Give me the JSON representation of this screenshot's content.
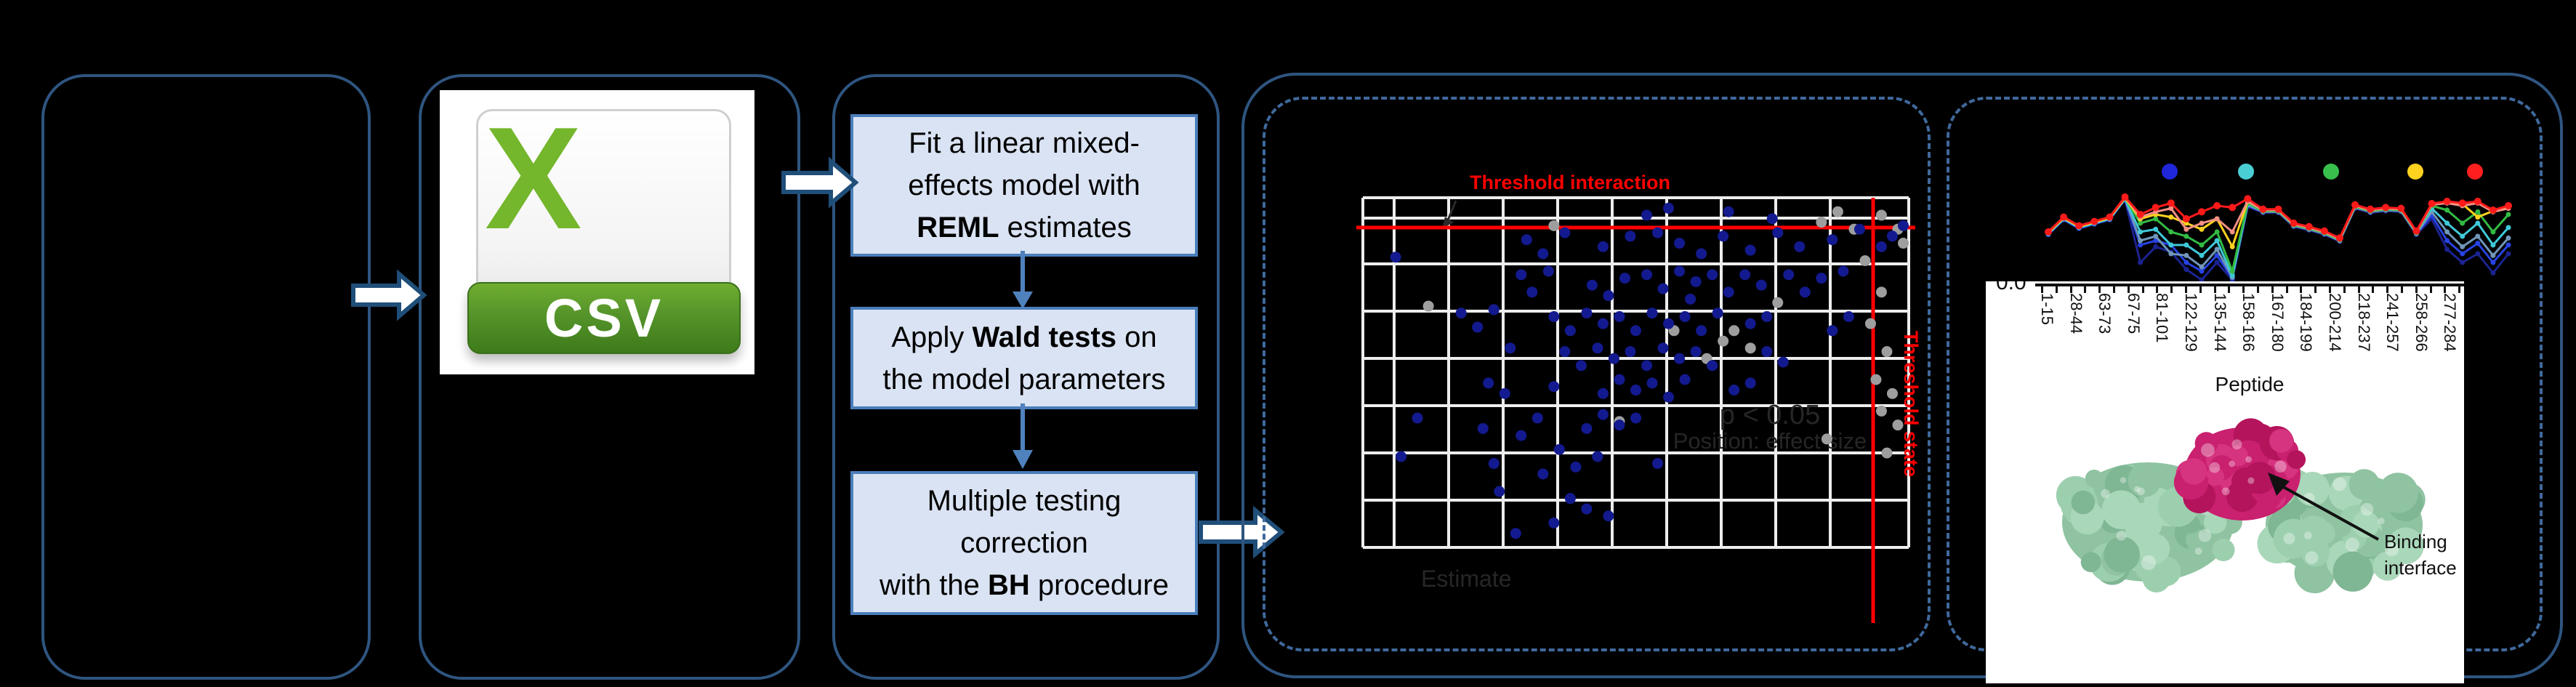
{
  "csv": {
    "letter": "X",
    "label": "CSV"
  },
  "flow": {
    "box1": {
      "lines": [
        [
          {
            "t": "Fit a linear mixed-"
          }
        ],
        [
          {
            "t": "effects model with"
          }
        ],
        [
          {
            "t": "REML",
            "b": 1
          },
          {
            "t": " estimates"
          }
        ]
      ]
    },
    "box2": {
      "lines": [
        [
          {
            "t": "Apply "
          },
          {
            "t": "Wald tests",
            "b": 1
          },
          {
            "t": " on"
          }
        ],
        [
          {
            "t": "the model parameters"
          }
        ]
      ]
    },
    "box3": {
      "lines": [
        [
          {
            "t": "Multiple testing"
          }
        ],
        [
          {
            "t": "correction"
          }
        ],
        [
          {
            "t": "with the "
          },
          {
            "t": "BH",
            "b": 1
          },
          {
            "t": " procedure"
          }
        ]
      ]
    }
  },
  "scatter": {
    "title": "Threshold interaction",
    "threshold_state_label": "Threshold state",
    "faint_line1": "p < 0.05",
    "faint_line2": "Position: effect size",
    "faint_axis": "Estimate",
    "red": "#ff0000",
    "blue_color": "#131a8f",
    "gray_color": "#9e9e9e",
    "blue_points": [
      [
        0.52,
        0.05
      ],
      [
        0.56,
        0.03
      ],
      [
        0.67,
        0.04
      ],
      [
        0.75,
        0.06
      ],
      [
        0.06,
        0.17
      ],
      [
        0.3,
        0.12
      ],
      [
        0.33,
        0.16
      ],
      [
        0.37,
        0.1
      ],
      [
        0.44,
        0.14
      ],
      [
        0.49,
        0.11
      ],
      [
        0.54,
        0.1
      ],
      [
        0.58,
        0.13
      ],
      [
        0.62,
        0.16
      ],
      [
        0.66,
        0.11
      ],
      [
        0.71,
        0.15
      ],
      [
        0.76,
        0.1
      ],
      [
        0.8,
        0.14
      ],
      [
        0.86,
        0.12
      ],
      [
        0.91,
        0.09
      ],
      [
        0.95,
        0.14
      ],
      [
        0.97,
        0.11
      ],
      [
        0.99,
        0.08
      ],
      [
        0.29,
        0.22
      ],
      [
        0.31,
        0.27
      ],
      [
        0.34,
        0.21
      ],
      [
        0.42,
        0.25
      ],
      [
        0.45,
        0.28
      ],
      [
        0.48,
        0.23
      ],
      [
        0.52,
        0.22
      ],
      [
        0.55,
        0.26
      ],
      [
        0.58,
        0.21
      ],
      [
        0.61,
        0.24
      ],
      [
        0.64,
        0.22
      ],
      [
        0.67,
        0.27
      ],
      [
        0.7,
        0.22
      ],
      [
        0.73,
        0.25
      ],
      [
        0.78,
        0.22
      ],
      [
        0.81,
        0.27
      ],
      [
        0.84,
        0.23
      ],
      [
        0.88,
        0.21
      ],
      [
        0.6,
        0.29
      ],
      [
        0.18,
        0.33
      ],
      [
        0.21,
        0.37
      ],
      [
        0.24,
        0.32
      ],
      [
        0.35,
        0.34
      ],
      [
        0.38,
        0.38
      ],
      [
        0.41,
        0.33
      ],
      [
        0.44,
        0.36
      ],
      [
        0.47,
        0.34
      ],
      [
        0.5,
        0.38
      ],
      [
        0.53,
        0.33
      ],
      [
        0.56,
        0.36
      ],
      [
        0.59,
        0.34
      ],
      [
        0.62,
        0.38
      ],
      [
        0.65,
        0.33
      ],
      [
        0.71,
        0.36
      ],
      [
        0.74,
        0.34
      ],
      [
        0.86,
        0.38
      ],
      [
        0.89,
        0.34
      ],
      [
        0.27,
        0.43
      ],
      [
        0.37,
        0.44
      ],
      [
        0.4,
        0.48
      ],
      [
        0.43,
        0.43
      ],
      [
        0.46,
        0.46
      ],
      [
        0.49,
        0.44
      ],
      [
        0.52,
        0.48
      ],
      [
        0.55,
        0.43
      ],
      [
        0.58,
        0.46
      ],
      [
        0.61,
        0.44
      ],
      [
        0.64,
        0.48
      ],
      [
        0.74,
        0.44
      ],
      [
        0.77,
        0.47
      ],
      [
        0.23,
        0.53
      ],
      [
        0.26,
        0.56
      ],
      [
        0.35,
        0.54
      ],
      [
        0.44,
        0.56
      ],
      [
        0.47,
        0.52
      ],
      [
        0.5,
        0.55
      ],
      [
        0.53,
        0.53
      ],
      [
        0.56,
        0.57
      ],
      [
        0.59,
        0.52
      ],
      [
        0.68,
        0.55
      ],
      [
        0.71,
        0.53
      ],
      [
        0.1,
        0.63
      ],
      [
        0.22,
        0.66
      ],
      [
        0.32,
        0.63
      ],
      [
        0.41,
        0.66
      ],
      [
        0.44,
        0.62
      ],
      [
        0.47,
        0.65
      ],
      [
        0.5,
        0.63
      ],
      [
        0.29,
        0.68
      ],
      [
        0.07,
        0.74
      ],
      [
        0.24,
        0.76
      ],
      [
        0.36,
        0.72
      ],
      [
        0.39,
        0.77
      ],
      [
        0.43,
        0.74
      ],
      [
        0.54,
        0.76
      ],
      [
        0.33,
        0.79
      ],
      [
        0.25,
        0.84
      ],
      [
        0.38,
        0.86
      ],
      [
        0.41,
        0.89
      ],
      [
        0.35,
        0.93
      ],
      [
        0.45,
        0.91
      ],
      [
        0.28,
        0.96
      ]
    ],
    "gray_points": [
      [
        0.84,
        0.07
      ],
      [
        0.87,
        0.04
      ],
      [
        0.9,
        0.09
      ],
      [
        0.95,
        0.05
      ],
      [
        0.98,
        0.09
      ],
      [
        0.99,
        0.13
      ],
      [
        0.92,
        0.18
      ],
      [
        0.95,
        0.27
      ],
      [
        0.93,
        0.36
      ],
      [
        0.96,
        0.44
      ],
      [
        0.94,
        0.52
      ],
      [
        0.97,
        0.56
      ],
      [
        0.95,
        0.61
      ],
      [
        0.98,
        0.65
      ],
      [
        0.96,
        0.73
      ],
      [
        0.85,
        0.69
      ],
      [
        0.68,
        0.38
      ],
      [
        0.71,
        0.43
      ],
      [
        0.66,
        0.41
      ],
      [
        0.57,
        0.38
      ],
      [
        0.76,
        0.3
      ],
      [
        0.63,
        0.46
      ],
      [
        0.47,
        0.64
      ],
      [
        0.12,
        0.31
      ],
      [
        0.35,
        0.08
      ]
    ]
  },
  "uptake": {
    "legend_colors": [
      "#2026d9",
      "#49cfd4",
      "#38c04c",
      "#ffd21f",
      "#ff1f1f"
    ],
    "y_tick": "0.0",
    "x_axis_label": "Peptide",
    "x_labels": [
      "1-15",
      "28-44",
      "63-73",
      "67-75",
      "81-101",
      "122-129",
      "135-144",
      "158-166",
      "167-180",
      "184-199",
      "200-214",
      "218-237",
      "241-257",
      "258-266",
      "277-284"
    ],
    "series": [
      {
        "color": "#1b2391",
        "values": [
          0.48,
          0.31,
          0.41,
          0.36,
          0.31,
          0.08,
          0.8,
          0.62,
          0.68,
          0.88,
          1.0,
          0.8,
          1.0,
          0.16,
          0.23,
          0.23,
          0.39,
          0.43,
          0.48,
          0.56,
          0.18,
          0.23,
          0.21,
          0.22,
          0.48,
          0.3,
          0.65,
          0.8,
          0.7,
          0.92,
          0.7
        ]
      },
      {
        "color": "#2743e3",
        "values": [
          0.48,
          0.31,
          0.41,
          0.36,
          0.31,
          0.08,
          0.6,
          0.55,
          0.6,
          0.8,
          0.9,
          0.72,
          0.98,
          0.15,
          0.22,
          0.22,
          0.38,
          0.42,
          0.47,
          0.55,
          0.17,
          0.22,
          0.2,
          0.21,
          0.47,
          0.26,
          0.55,
          0.7,
          0.58,
          0.8,
          0.6
        ]
      },
      {
        "color": "#7096b8",
        "values": [
          0.47,
          0.3,
          0.4,
          0.35,
          0.3,
          0.07,
          0.55,
          0.5,
          0.7,
          0.72,
          0.85,
          0.65,
          0.97,
          0.14,
          0.22,
          0.22,
          0.38,
          0.42,
          0.47,
          0.55,
          0.17,
          0.22,
          0.2,
          0.21,
          0.47,
          0.22,
          0.45,
          0.62,
          0.5,
          0.72,
          0.52
        ]
      },
      {
        "color": "#3fc9d9",
        "values": [
          0.47,
          0.3,
          0.4,
          0.35,
          0.3,
          0.07,
          0.45,
          0.42,
          0.6,
          0.6,
          0.72,
          0.55,
          0.95,
          0.13,
          0.21,
          0.21,
          0.37,
          0.41,
          0.46,
          0.54,
          0.16,
          0.21,
          0.19,
          0.2,
          0.46,
          0.18,
          0.35,
          0.5,
          0.35,
          0.6,
          0.4
        ]
      },
      {
        "color": "#33bb44",
        "values": [
          0.46,
          0.29,
          0.39,
          0.34,
          0.29,
          0.06,
          0.35,
          0.3,
          0.45,
          0.5,
          0.6,
          0.45,
          0.9,
          0.12,
          0.21,
          0.21,
          0.37,
          0.41,
          0.46,
          0.54,
          0.16,
          0.21,
          0.19,
          0.2,
          0.46,
          0.15,
          0.2,
          0.35,
          0.22,
          0.45,
          0.25
        ]
      },
      {
        "color": "#ffd21f",
        "values": [
          0.46,
          0.29,
          0.39,
          0.34,
          0.29,
          0.06,
          0.3,
          0.25,
          0.28,
          0.35,
          0.42,
          0.3,
          0.62,
          0.1,
          0.2,
          0.2,
          0.36,
          0.4,
          0.45,
          0.53,
          0.15,
          0.2,
          0.18,
          0.19,
          0.45,
          0.13,
          0.11,
          0.13,
          0.28,
          0.21,
          0.16
        ]
      },
      {
        "color": "#f49084",
        "values": [
          0.45,
          0.28,
          0.38,
          0.33,
          0.28,
          0.05,
          0.28,
          0.22,
          0.18,
          0.42,
          0.35,
          0.3,
          0.45,
          0.1,
          0.2,
          0.2,
          0.36,
          0.4,
          0.45,
          0.53,
          0.15,
          0.2,
          0.18,
          0.19,
          0.45,
          0.14,
          0.12,
          0.15,
          0.12,
          0.22,
          0.18
        ]
      },
      {
        "color": "#ff1a1a",
        "values": [
          0.45,
          0.28,
          0.38,
          0.33,
          0.28,
          0.05,
          0.25,
          0.17,
          0.12,
          0.3,
          0.22,
          0.15,
          0.17,
          0.07,
          0.19,
          0.19,
          0.35,
          0.39,
          0.44,
          0.52,
          0.14,
          0.19,
          0.17,
          0.18,
          0.44,
          0.125,
          0.1,
          0.12,
          0.1,
          0.2,
          0.15
        ]
      }
    ]
  },
  "protein": {
    "label": "Binding interface"
  }
}
